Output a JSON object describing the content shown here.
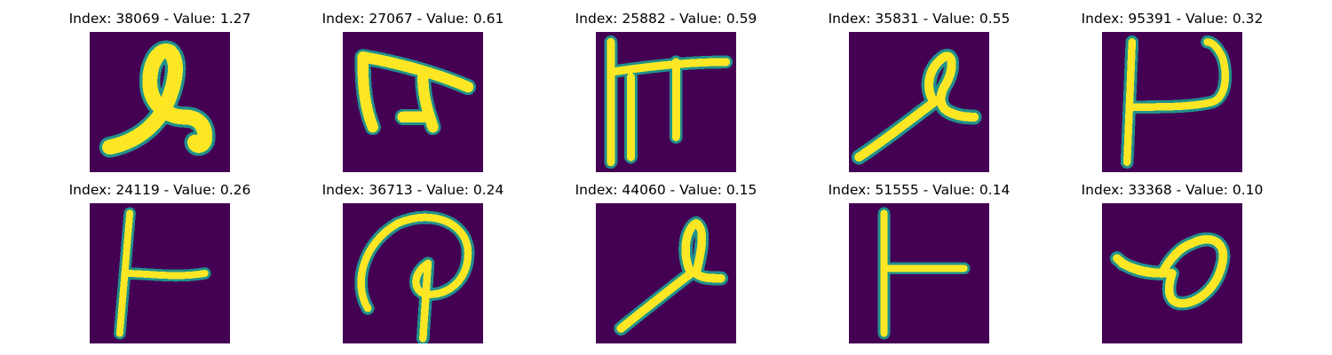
{
  "colors": {
    "background": "#440154",
    "stroke_core": "#fde725",
    "stroke_edge": "#21918c",
    "stroke_mid": "#5ec962"
  },
  "panels": [
    {
      "title": "Index: 38069 - Value: 1.27",
      "glyph": "g0"
    },
    {
      "title": "Index: 27067 - Value: 0.61",
      "glyph": "g1"
    },
    {
      "title": "Index: 25882 - Value: 0.59",
      "glyph": "g2"
    },
    {
      "title": "Index: 35831 - Value: 0.55",
      "glyph": "g3"
    },
    {
      "title": "Index: 95391 - Value: 0.32",
      "glyph": "g4"
    },
    {
      "title": "Index: 24119 - Value: 0.26",
      "glyph": "g5"
    },
    {
      "title": "Index: 36713 - Value: 0.24",
      "glyph": "g6"
    },
    {
      "title": "Index: 44060 - Value: 0.15",
      "glyph": "g7"
    },
    {
      "title": "Index: 51555 - Value: 0.14",
      "glyph": "g8"
    },
    {
      "title": "Index: 33368 - Value: 0.10",
      "glyph": "g9"
    }
  ]
}
